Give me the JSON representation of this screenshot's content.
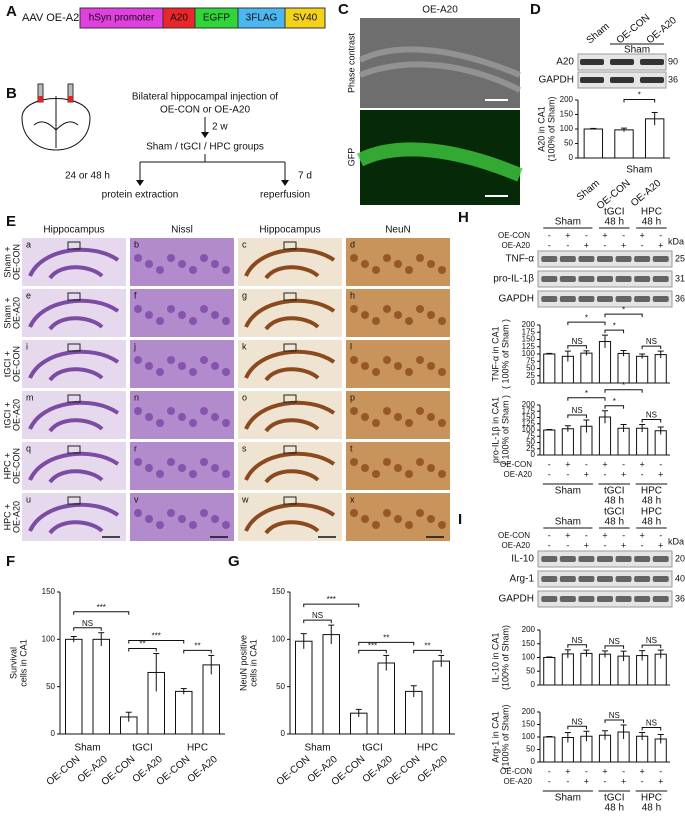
{
  "panel_labels": [
    "A",
    "B",
    "C",
    "D",
    "E",
    "F",
    "G",
    "H",
    "I"
  ],
  "construct": {
    "title": "AAV OE-A20",
    "elements": [
      {
        "name": "hSyn promoter",
        "color": "#e23fe0"
      },
      {
        "name": "A20",
        "color": "#e8262b"
      },
      {
        "name": "EGFP",
        "color": "#2fd63a"
      },
      {
        "name": "3FLAG",
        "color": "#4cb6f0"
      },
      {
        "name": "SV40",
        "color": "#f4d21a"
      }
    ]
  },
  "schematic": {
    "injection": "Bilateral hippocampal injection of",
    "injection_2": "OE-CON or OE-A20",
    "interval": "2 w",
    "groups": "Sham / tGCI / HPC groups",
    "left_time": "24 or 48 h",
    "left_outcome": "protein extraction",
    "right_time": "7 d",
    "right_outcome": "reperfusion"
  },
  "gfp_panel": {
    "title": "OE-A20",
    "labels": [
      "Phase contrast",
      "GFP"
    ]
  },
  "blot_d": {
    "lanes": [
      "Sham",
      "OE-CON",
      "OE-A20"
    ],
    "group": "Sham",
    "proteins": [
      "A20",
      "GAPDH"
    ],
    "kda": [
      "90",
      "36"
    ]
  },
  "histology": {
    "columns": [
      "Hippocampus",
      "Nissl",
      "Hippocampus",
      "NeuN"
    ],
    "rows": [
      [
        "Sham +",
        "OE-CON"
      ],
      [
        "Sham +",
        "OE-A20"
      ],
      [
        "tGCI +",
        "OE-CON"
      ],
      [
        "tGCI +",
        "OE-A20"
      ],
      [
        "HPC +",
        "OE-CON"
      ],
      [
        "HPC +",
        "OE-A20"
      ]
    ],
    "letters": [
      "a",
      "b",
      "c",
      "d",
      "e",
      "f",
      "g",
      "h",
      "i",
      "j",
      "k",
      "l",
      "m",
      "n",
      "o",
      "p",
      "q",
      "r",
      "s",
      "t",
      "u",
      "v",
      "w",
      "x"
    ]
  },
  "blot_h": {
    "groups": [
      [
        "Sham"
      ],
      [
        "tGCI",
        "48 h"
      ],
      [
        "HPC",
        "48 h"
      ]
    ],
    "conditions": [
      {
        "name": "OE-CON",
        "signs": [
          "-",
          "+",
          "-",
          "+",
          "-",
          "+",
          "-"
        ]
      },
      {
        "name": "OE-A20",
        "signs": [
          "-",
          "-",
          "+",
          "-",
          "+",
          "-",
          "+"
        ]
      }
    ],
    "kda_unit": "kDa",
    "proteins": [
      "TNF-α",
      "pro-IL-1β",
      "GAPDH"
    ],
    "kda": [
      "25",
      "31",
      "36"
    ]
  },
  "blot_i": {
    "groups": [
      [
        "Sham"
      ],
      [
        "tGCI",
        "48 h"
      ],
      [
        "HPC",
        "48 h"
      ]
    ],
    "conditions": [
      {
        "name": "OE-CON",
        "signs": [
          "-",
          "+",
          "-",
          "+",
          "-",
          "+",
          "-"
        ]
      },
      {
        "name": "OE-A20",
        "signs": [
          "-",
          "-",
          "+",
          "-",
          "+",
          "-",
          "+"
        ]
      }
    ],
    "kda_unit": "kDa",
    "proteins": [
      "IL-10",
      "Arg-1",
      "GAPDH"
    ],
    "kda": [
      "20",
      "40",
      "36"
    ]
  },
  "chart_data": [
    {
      "type": "bar",
      "ylabel": [
        "A20 in CA1",
        "(100% of Sham)"
      ],
      "categories": [
        "Sham",
        "OE-CON",
        "OE-A20"
      ],
      "groups": [
        [
          "Sham"
        ]
      ],
      "values": [
        100,
        97,
        135
      ],
      "errors": [
        2,
        6,
        22
      ],
      "ylim": [
        0,
        200
      ],
      "yticks": [
        0,
        50,
        100,
        150,
        200
      ],
      "annotations": [
        "*"
      ]
    },
    {
      "type": "bar",
      "ylabel": [
        "Survival",
        "cells in CA1"
      ],
      "categories": [
        "OE-CON",
        "OE-A20",
        "OE-CON",
        "OE-A20",
        "OE-CON",
        "OE-A20"
      ],
      "groups": [
        [
          "Sham"
        ],
        [
          "tGCI"
        ],
        [
          "HPC"
        ]
      ],
      "values": [
        100,
        100,
        18,
        65,
        45,
        73
      ],
      "errors": [
        3,
        7,
        5,
        20,
        3,
        10
      ],
      "ylim": [
        0,
        150
      ],
      "yticks": [
        0,
        50,
        100,
        150
      ],
      "annotations": [
        "NS",
        "***",
        "**",
        "***",
        "**"
      ]
    },
    {
      "type": "bar",
      "ylabel": [
        "NeuN positive",
        "cells in CA1"
      ],
      "categories": [
        "OE-CON",
        "OE-A20",
        "OE-CON",
        "OE-A20",
        "OE-CON",
        "OE-A20"
      ],
      "groups": [
        [
          "Sham"
        ],
        [
          "tGCI"
        ],
        [
          "HPC"
        ]
      ],
      "values": [
        98,
        105,
        22,
        75,
        45,
        77
      ],
      "errors": [
        8,
        10,
        4,
        8,
        6,
        6
      ],
      "ylim": [
        0,
        150
      ],
      "yticks": [
        0,
        50,
        100,
        150
      ],
      "annotations": [
        "NS",
        "***",
        "***",
        "**",
        "**"
      ]
    },
    {
      "type": "bar",
      "ylabel": [
        "TNF-α in CA1",
        "( 100% of Sham )"
      ],
      "values": [
        100,
        92,
        103,
        143,
        102,
        92,
        98
      ],
      "errors": [
        2,
        18,
        8,
        22,
        10,
        8,
        12
      ],
      "ylim": [
        0,
        200
      ],
      "yticks": [
        0,
        25,
        50,
        75,
        100,
        125,
        150,
        175,
        200
      ],
      "annotations": [
        "NS",
        "*",
        "*",
        "*",
        "NS"
      ]
    },
    {
      "type": "bar",
      "ylabel": [
        "pro-IL-1β in CA1",
        "( 100% of Sham )"
      ],
      "values": [
        100,
        105,
        115,
        152,
        107,
        107,
        97
      ],
      "errors": [
        2,
        12,
        25,
        25,
        15,
        15,
        15
      ],
      "ylim": [
        0,
        200
      ],
      "yticks": [
        0,
        25,
        50,
        75,
        100,
        125,
        150,
        175,
        200
      ],
      "annotations": [
        "NS",
        "*",
        "*",
        "*",
        "NS"
      ],
      "conditions": [
        {
          "name": "OE-CON",
          "signs": [
            "-",
            "+",
            "-",
            "+",
            "-",
            "+",
            "-"
          ]
        },
        {
          "name": "OE-A20",
          "signs": [
            "-",
            "-",
            "+",
            "-",
            "+",
            "-",
            "+"
          ]
        }
      ],
      "groups": [
        [
          "Sham"
        ],
        [
          "tGCI",
          "48 h"
        ],
        [
          "HPC",
          "48 h"
        ]
      ]
    },
    {
      "type": "bar",
      "ylabel": [
        "IL-10 in CA1",
        "(100% of Sham)"
      ],
      "values": [
        100,
        113,
        115,
        112,
        105,
        107,
        112
      ],
      "errors": [
        2,
        15,
        12,
        12,
        18,
        18,
        15
      ],
      "ylim": [
        0,
        200
      ],
      "yticks": [
        0,
        50,
        100,
        150,
        200
      ],
      "annotations": [
        "NS",
        "NS",
        "NS"
      ]
    },
    {
      "type": "bar",
      "ylabel": [
        "Arg-1 in CA1",
        "(100% of Sham)"
      ],
      "values": [
        100,
        98,
        103,
        107,
        120,
        103,
        92
      ],
      "errors": [
        2,
        20,
        20,
        18,
        28,
        15,
        18
      ],
      "ylim": [
        0,
        200
      ],
      "yticks": [
        0,
        50,
        100,
        150,
        200
      ],
      "annotations": [
        "NS",
        "NS",
        "NS"
      ],
      "conditions": [
        {
          "name": "OE-CON",
          "signs": [
            "-",
            "+",
            "-",
            "+",
            "-",
            "+",
            "-"
          ]
        },
        {
          "name": "OE-A20",
          "signs": [
            "-",
            "-",
            "+",
            "-",
            "+",
            "-",
            "+"
          ]
        }
      ],
      "groups": [
        [
          "Sham"
        ],
        [
          "tGCI",
          "48 h"
        ],
        [
          "HPC",
          "48 h"
        ]
      ]
    }
  ]
}
